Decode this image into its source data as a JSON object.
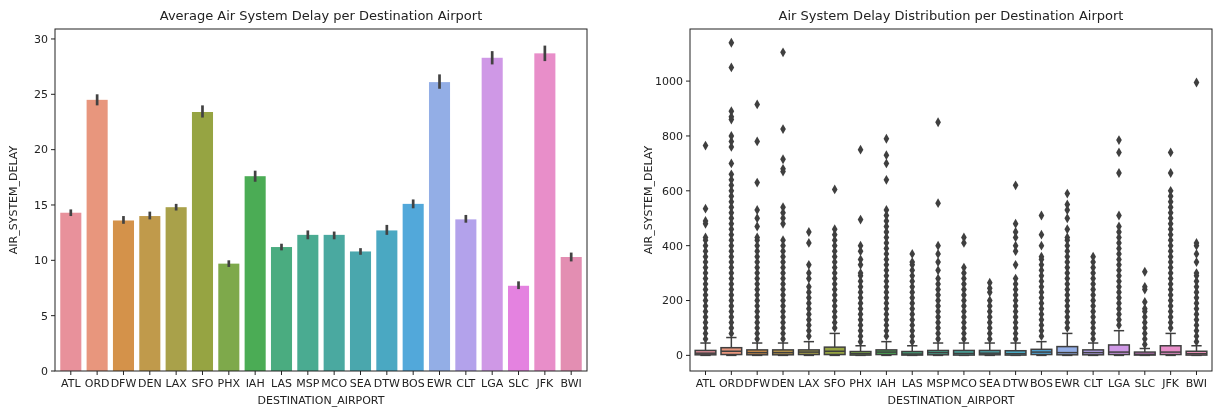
{
  "chart_data": [
    {
      "type": "bar",
      "title": "Average Air System Delay per Destination Airport",
      "xlabel": "DESTINATION_AIRPORT",
      "ylabel": "AIR_SYSTEM_DELAY",
      "categories": [
        "ATL",
        "ORD",
        "DFW",
        "DEN",
        "LAX",
        "SFO",
        "PHX",
        "IAH",
        "LAS",
        "MSP",
        "MCO",
        "SEA",
        "DTW",
        "BOS",
        "EWR",
        "CLT",
        "LGA",
        "SLC",
        "JFK",
        "BWI"
      ],
      "values": [
        14.3,
        24.5,
        13.6,
        14.0,
        14.8,
        23.4,
        9.7,
        17.6,
        11.2,
        12.3,
        12.3,
        10.8,
        12.7,
        15.1,
        26.1,
        13.7,
        28.3,
        7.7,
        28.7,
        10.3
      ],
      "errors": [
        [
          14.0,
          14.6
        ],
        [
          24.0,
          25.0
        ],
        [
          13.3,
          14.0
        ],
        [
          13.7,
          14.4
        ],
        [
          14.5,
          15.1
        ],
        [
          22.9,
          24.0
        ],
        [
          9.4,
          10.0
        ],
        [
          17.1,
          18.1
        ],
        [
          10.9,
          11.5
        ],
        [
          11.9,
          12.7
        ],
        [
          11.9,
          12.6
        ],
        [
          10.5,
          11.1
        ],
        [
          12.3,
          13.2
        ],
        [
          14.7,
          15.5
        ],
        [
          25.5,
          26.8
        ],
        [
          13.4,
          14.1
        ],
        [
          27.7,
          28.9
        ],
        [
          7.4,
          8.1
        ],
        [
          28.0,
          29.4
        ],
        [
          9.9,
          10.7
        ]
      ],
      "colors": [
        "#e8919b",
        "#e8967d",
        "#d4924a",
        "#c09a4b",
        "#a9a14a",
        "#96a442",
        "#7ea94b",
        "#4bac55",
        "#4aac80",
        "#4aab91",
        "#4aa9a0",
        "#4aa7ad",
        "#4aa8c2",
        "#52a8da",
        "#93aee6",
        "#b3a2eb",
        "#cf98e6",
        "#e482e0",
        "#e88ec9",
        "#e38eb2"
      ],
      "ylim": [
        0,
        30.9
      ],
      "yticks": [
        0,
        5,
        10,
        15,
        20,
        25,
        30
      ],
      "grid": false
    },
    {
      "type": "box",
      "title": "Air System Delay Distribution per Destination Airport",
      "xlabel": "DESTINATION_AIRPORT",
      "ylabel": "AIR_SYSTEM_DELAY",
      "categories": [
        "ATL",
        "ORD",
        "DFW",
        "DEN",
        "LAX",
        "SFO",
        "PHX",
        "IAH",
        "LAS",
        "MSP",
        "MCO",
        "SEA",
        "DTW",
        "BOS",
        "EWR",
        "CLT",
        "LGA",
        "SLC",
        "JFK",
        "BWI"
      ],
      "colors": [
        "#e8919b",
        "#e8967d",
        "#d4924a",
        "#c09a4b",
        "#a9a14a",
        "#96a442",
        "#7ea94b",
        "#4bac55",
        "#4aac80",
        "#4aab91",
        "#4aa9a0",
        "#4aa7ad",
        "#4aa8c2",
        "#52a8da",
        "#93aee6",
        "#b3a2eb",
        "#cf98e6",
        "#e482e0",
        "#e88ec9",
        "#e38eb2"
      ],
      "boxes": [
        {
          "low": 0,
          "q1": 2,
          "median": 8,
          "q3": 18,
          "high": 45,
          "outliers": [
            60,
            80,
            100,
            120,
            140,
            160,
            180,
            200,
            220,
            240,
            260,
            280,
            300,
            320,
            340,
            360,
            380,
            400,
            420,
            430,
            480,
            490,
            535,
            765
          ]
        },
        {
          "low": 0,
          "q1": 3,
          "median": 15,
          "q3": 28,
          "high": 65,
          "outliers": [
            80,
            100,
            120,
            140,
            160,
            180,
            200,
            220,
            240,
            260,
            280,
            300,
            320,
            340,
            360,
            380,
            400,
            420,
            440,
            460,
            480,
            500,
            520,
            540,
            560,
            580,
            600,
            620,
            640,
            660,
            700,
            760,
            780,
            800,
            860,
            870,
            890,
            1050,
            1140
          ]
        },
        {
          "low": 0,
          "q1": 2,
          "median": 10,
          "q3": 20,
          "high": 45,
          "outliers": [
            60,
            80,
            100,
            120,
            140,
            160,
            180,
            200,
            220,
            240,
            260,
            280,
            300,
            320,
            340,
            360,
            380,
            400,
            420,
            430,
            470,
            500,
            530,
            630,
            780,
            915
          ]
        },
        {
          "low": 0,
          "q1": 2,
          "median": 10,
          "q3": 20,
          "high": 45,
          "outliers": [
            60,
            80,
            100,
            120,
            140,
            160,
            180,
            200,
            220,
            240,
            260,
            280,
            300,
            320,
            340,
            360,
            380,
            400,
            420,
            480,
            500,
            520,
            540,
            670,
            680,
            715,
            825,
            1105
          ]
        },
        {
          "low": 0,
          "q1": 3,
          "median": 12,
          "q3": 20,
          "high": 50,
          "outliers": [
            70,
            90,
            110,
            130,
            150,
            170,
            190,
            210,
            230,
            250,
            280,
            300,
            330,
            410,
            450
          ]
        },
        {
          "low": 0,
          "q1": 3,
          "median": 15,
          "q3": 30,
          "high": 80,
          "outliers": [
            100,
            120,
            140,
            160,
            180,
            200,
            220,
            240,
            260,
            280,
            300,
            320,
            340,
            360,
            380,
            400,
            420,
            440,
            460,
            605
          ]
        },
        {
          "low": 0,
          "q1": 1,
          "median": 6,
          "q3": 14,
          "high": 35,
          "outliers": [
            50,
            70,
            90,
            110,
            130,
            150,
            170,
            190,
            210,
            230,
            250,
            270,
            290,
            300,
            330,
            350,
            380,
            400,
            495,
            750
          ]
        },
        {
          "low": 0,
          "q1": 3,
          "median": 12,
          "q3": 20,
          "high": 50,
          "outliers": [
            70,
            90,
            110,
            130,
            150,
            170,
            190,
            210,
            230,
            250,
            270,
            290,
            310,
            330,
            350,
            370,
            390,
            410,
            430,
            450,
            470,
            490,
            510,
            530,
            640,
            700,
            730,
            790
          ]
        },
        {
          "low": 0,
          "q1": 1,
          "median": 5,
          "q3": 14,
          "high": 35,
          "outliers": [
            50,
            70,
            90,
            110,
            130,
            150,
            170,
            190,
            210,
            230,
            250,
            270,
            290,
            310,
            330,
            340,
            370
          ]
        },
        {
          "low": 0,
          "q1": 2,
          "median": 10,
          "q3": 18,
          "high": 45,
          "outliers": [
            60,
            80,
            100,
            120,
            140,
            160,
            180,
            200,
            220,
            240,
            260,
            280,
            310,
            340,
            370,
            400,
            555,
            850
          ]
        },
        {
          "low": 0,
          "q1": 1,
          "median": 7,
          "q3": 18,
          "high": 45,
          "outliers": [
            60,
            80,
            100,
            120,
            140,
            160,
            180,
            200,
            220,
            240,
            260,
            280,
            300,
            320,
            410,
            430
          ]
        },
        {
          "low": 0,
          "q1": 2,
          "median": 8,
          "q3": 18,
          "high": 45,
          "outliers": [
            60,
            80,
            100,
            120,
            140,
            160,
            180,
            200,
            230,
            245,
            265
          ]
        },
        {
          "low": 0,
          "q1": 1,
          "median": 6,
          "q3": 17,
          "high": 45,
          "outliers": [
            60,
            80,
            100,
            120,
            140,
            160,
            180,
            200,
            220,
            240,
            260,
            280,
            330,
            380,
            400,
            430,
            450,
            480,
            620
          ]
        },
        {
          "low": 0,
          "q1": 3,
          "median": 12,
          "q3": 22,
          "high": 50,
          "outliers": [
            70,
            90,
            110,
            130,
            150,
            170,
            190,
            210,
            230,
            250,
            270,
            290,
            310,
            330,
            350,
            360,
            400,
            440,
            510
          ]
        },
        {
          "low": 0,
          "q1": 2,
          "median": 10,
          "q3": 32,
          "high": 80,
          "outliers": [
            100,
            120,
            140,
            160,
            180,
            200,
            220,
            240,
            260,
            280,
            300,
            320,
            340,
            360,
            380,
            400,
            420,
            430,
            460,
            500,
            530,
            550,
            590
          ]
        },
        {
          "low": 0,
          "q1": 2,
          "median": 10,
          "q3": 20,
          "high": 45,
          "outliers": [
            60,
            80,
            100,
            120,
            140,
            160,
            180,
            200,
            220,
            240,
            260,
            280,
            300,
            320,
            340,
            360
          ]
        },
        {
          "low": 0,
          "q1": 3,
          "median": 12,
          "q3": 38,
          "high": 90,
          "outliers": [
            110,
            130,
            150,
            170,
            190,
            210,
            230,
            250,
            270,
            290,
            310,
            330,
            350,
            370,
            390,
            410,
            430,
            450,
            470,
            510,
            665,
            740,
            785
          ]
        },
        {
          "low": 0,
          "q1": 1,
          "median": 4,
          "q3": 12,
          "high": 25,
          "outliers": [
            40,
            60,
            80,
            100,
            120,
            140,
            160,
            170,
            195,
            240,
            250,
            305
          ]
        },
        {
          "low": 0,
          "q1": 3,
          "median": 12,
          "q3": 35,
          "high": 80,
          "outliers": [
            100,
            120,
            140,
            160,
            180,
            200,
            220,
            240,
            260,
            280,
            300,
            320,
            340,
            360,
            380,
            400,
            420,
            440,
            460,
            480,
            500,
            520,
            540,
            560,
            580,
            600,
            665,
            740
          ]
        },
        {
          "low": 0,
          "q1": 1,
          "median": 6,
          "q3": 15,
          "high": 35,
          "outliers": [
            50,
            70,
            90,
            110,
            130,
            150,
            170,
            190,
            210,
            230,
            250,
            270,
            290,
            300,
            340,
            370,
            400,
            410,
            995
          ]
        }
      ],
      "marker": "diamond",
      "ylim": [
        -57,
        1190
      ],
      "yticks": [
        0,
        200,
        400,
        600,
        800,
        1000
      ],
      "grid": false
    }
  ]
}
